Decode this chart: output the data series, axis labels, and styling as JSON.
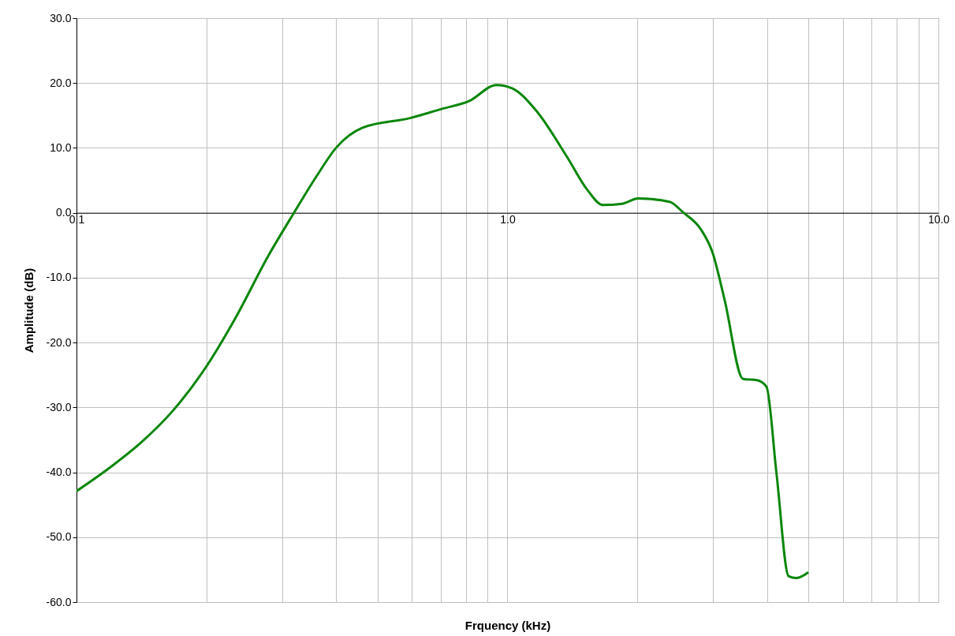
{
  "chart_data": {
    "type": "line",
    "xlabel": "Frquency (kHz)",
    "ylabel": "Amplitude (dB)",
    "log": "x",
    "grid": true,
    "x": [
      0.1,
      0.1199,
      0.1418,
      0.1679,
      0.1987,
      0.2352,
      0.2783,
      0.3196,
      0.3587,
      0.4013,
      0.461,
      0.5947,
      0.7034,
      0.8139,
      0.9437,
      1.025,
      1.164,
      1.378,
      1.53,
      1.664,
      1.848,
      2.008,
      2.376,
      2.563,
      2.807,
      2.99,
      3.19,
      3.52,
      3.79,
      3.99,
      4.21,
      4.49,
      4.68,
      4.99
    ],
    "series": [
      {
        "color": "#0a860a",
        "values": [
          -42.9,
          -39.2,
          -35.3,
          -30.4,
          -24.0,
          -15.9,
          -6.7,
          0.0,
          5.4,
          10.1,
          13.1,
          14.6,
          16.0,
          17.2,
          19.7,
          19.2,
          15.8,
          8.5,
          3.6,
          1.2,
          1.4,
          2.2,
          1.7,
          0.0,
          -2.5,
          -6.1,
          -13.4,
          -25.6,
          -25.8,
          -26.8,
          -40.2,
          -56.0,
          -56.3,
          -55.4
        ]
      }
    ],
    "xlim": [
      0.1,
      10
    ],
    "xticks": [
      {
        "value": 0.1,
        "label": "0.1"
      },
      {
        "value": 0.2,
        "label": null
      },
      {
        "value": 0.3,
        "label": null
      },
      {
        "value": 0.4,
        "label": null
      },
      {
        "value": 0.5,
        "label": null
      },
      {
        "value": 0.6,
        "label": null
      },
      {
        "value": 0.7,
        "label": null
      },
      {
        "value": 0.8,
        "label": null
      },
      {
        "value": 0.9,
        "label": null
      },
      {
        "value": 1,
        "label": "1.0"
      },
      {
        "value": 2,
        "label": null
      },
      {
        "value": 3,
        "label": null
      },
      {
        "value": 4,
        "label": null
      },
      {
        "value": 5,
        "label": null
      },
      {
        "value": 6,
        "label": null
      },
      {
        "value": 7,
        "label": null
      },
      {
        "value": 8,
        "label": null
      },
      {
        "value": 9,
        "label": null
      },
      {
        "value": 10,
        "label": "10.0"
      }
    ],
    "ylim": [
      -60,
      30
    ],
    "yticks": [
      {
        "value": -60,
        "label": "-60.0"
      },
      {
        "value": -50,
        "label": "-50.0"
      },
      {
        "value": -40,
        "label": "-40.0"
      },
      {
        "value": -30,
        "label": "-30.0"
      },
      {
        "value": -20,
        "label": "-20.0"
      },
      {
        "value": -10,
        "label": "-10.0"
      },
      {
        "value": 0,
        "label": "0.0"
      },
      {
        "value": 10,
        "label": "10.0"
      },
      {
        "value": 20,
        "label": "20.0"
      },
      {
        "value": 30,
        "label": "30.0"
      }
    ]
  }
}
